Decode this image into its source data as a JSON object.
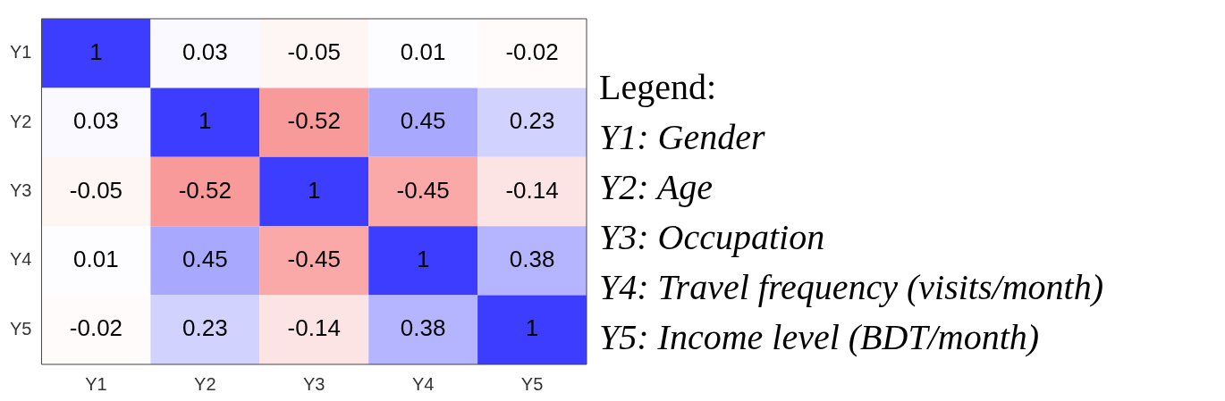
{
  "chart_data": {
    "type": "heatmap",
    "data_labels": true,
    "categories": [
      "Y1",
      "Y2",
      "Y3",
      "Y4",
      "Y5"
    ],
    "y_categories": [
      "Y1",
      "Y2",
      "Y3",
      "Y4",
      "Y5"
    ],
    "cells": [
      [
        1,
        0.03,
        -0.05,
        0.01,
        -0.02
      ],
      [
        0.03,
        1,
        -0.52,
        0.45,
        0.23
      ],
      [
        -0.05,
        -0.52,
        1,
        -0.45,
        -0.14
      ],
      [
        0.01,
        0.45,
        -0.45,
        1,
        0.38
      ],
      [
        -0.02,
        0.23,
        -0.14,
        0.38,
        1
      ]
    ],
    "annotations": [
      "Legend:",
      "Y1: Gender",
      "Y2: Age",
      "Y3: Occupation",
      "Y4: Travel frequency (visits/month)",
      "Y5: Income level (BDT/month)"
    ]
  }
}
